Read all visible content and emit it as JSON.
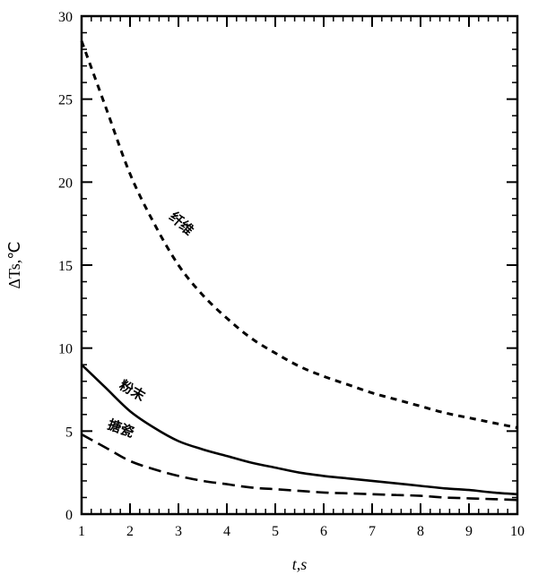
{
  "chart_data": {
    "type": "line",
    "title": "",
    "xlabel": "t,s",
    "ylabel": "ΔTs,℃",
    "xlim": [
      1,
      10
    ],
    "ylim": [
      0,
      30
    ],
    "xticks": [
      1,
      2,
      3,
      4,
      5,
      6,
      7,
      8,
      9,
      10
    ],
    "yticks": [
      0,
      5,
      10,
      15,
      20,
      25,
      30
    ],
    "grid": false,
    "series": [
      {
        "name": "纤维",
        "style": "short-dash",
        "x": [
          1,
          1.5,
          2,
          2.5,
          3,
          3.5,
          4,
          4.5,
          5,
          5.5,
          6,
          6.5,
          7,
          7.5,
          8,
          8.5,
          9,
          9.5,
          10
        ],
        "y": [
          28.5,
          24.5,
          20.5,
          17.5,
          15.0,
          13.2,
          11.8,
          10.6,
          9.7,
          8.9,
          8.3,
          7.8,
          7.3,
          6.9,
          6.5,
          6.1,
          5.8,
          5.5,
          5.2
        ]
      },
      {
        "name": "粉末",
        "style": "solid",
        "x": [
          1,
          1.5,
          2,
          2.5,
          3,
          3.5,
          4,
          4.5,
          5,
          5.5,
          6,
          6.5,
          7,
          7.5,
          8,
          8.5,
          9,
          9.5,
          10
        ],
        "y": [
          9.0,
          7.6,
          6.2,
          5.2,
          4.4,
          3.9,
          3.5,
          3.1,
          2.8,
          2.5,
          2.3,
          2.15,
          2.0,
          1.85,
          1.7,
          1.55,
          1.45,
          1.3,
          1.2
        ]
      },
      {
        "name": "搪瓷",
        "style": "long-dash",
        "x": [
          1,
          1.5,
          2,
          2.5,
          3,
          3.5,
          4,
          4.5,
          5,
          5.5,
          6,
          6.5,
          7,
          7.5,
          8,
          8.5,
          9,
          9.5,
          10
        ],
        "y": [
          4.8,
          4.0,
          3.2,
          2.7,
          2.3,
          2.0,
          1.8,
          1.6,
          1.5,
          1.4,
          1.3,
          1.25,
          1.2,
          1.15,
          1.1,
          1.0,
          0.95,
          0.9,
          0.85
        ]
      }
    ]
  }
}
